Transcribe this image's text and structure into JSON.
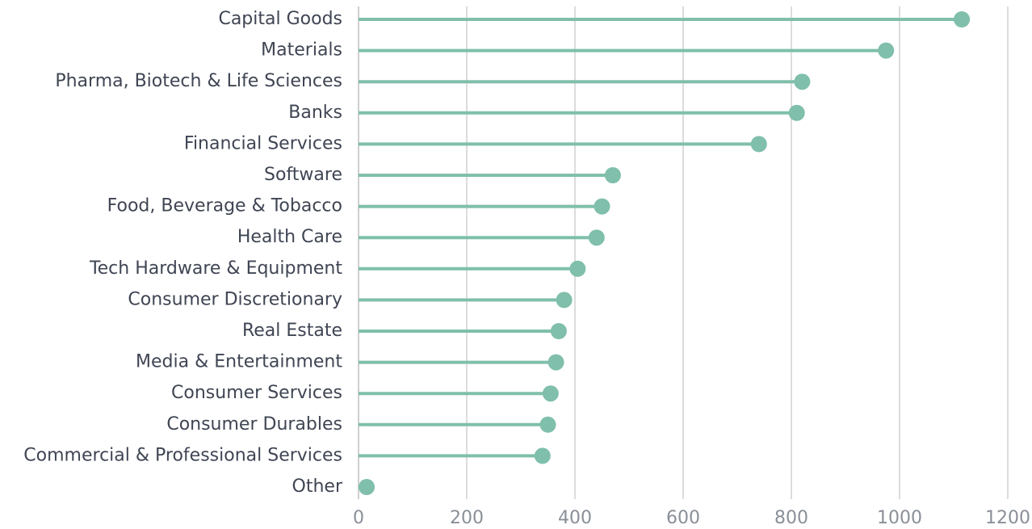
{
  "chart_data": {
    "type": "lollipop",
    "orientation": "horizontal",
    "title": "",
    "xlabel": "",
    "ylabel": "",
    "xlim": [
      0,
      1200
    ],
    "x_ticks": [
      0,
      200,
      400,
      600,
      800,
      1000,
      1200
    ],
    "x_tick_labels": [
      "0",
      "200",
      "400",
      "600",
      "800",
      "1000",
      "1200"
    ],
    "grid": "vertical",
    "legend": "none",
    "color": "#7fbfab",
    "categories": [
      "Capital Goods",
      "Materials",
      "Pharma, Biotech & Life Sciences",
      "Banks",
      "Financial Services",
      "Software",
      "Food, Beverage & Tobacco",
      "Health Care",
      "Tech Hardware & Equipment",
      "Consumer Discretionary",
      "Real Estate",
      "Media & Entertainment",
      "Consumer Services",
      "Consumer Durables",
      "Commercial & Professional Services",
      "Other"
    ],
    "values": [
      1115,
      975,
      820,
      810,
      740,
      470,
      450,
      440,
      405,
      380,
      370,
      365,
      355,
      350,
      340,
      15
    ]
  }
}
